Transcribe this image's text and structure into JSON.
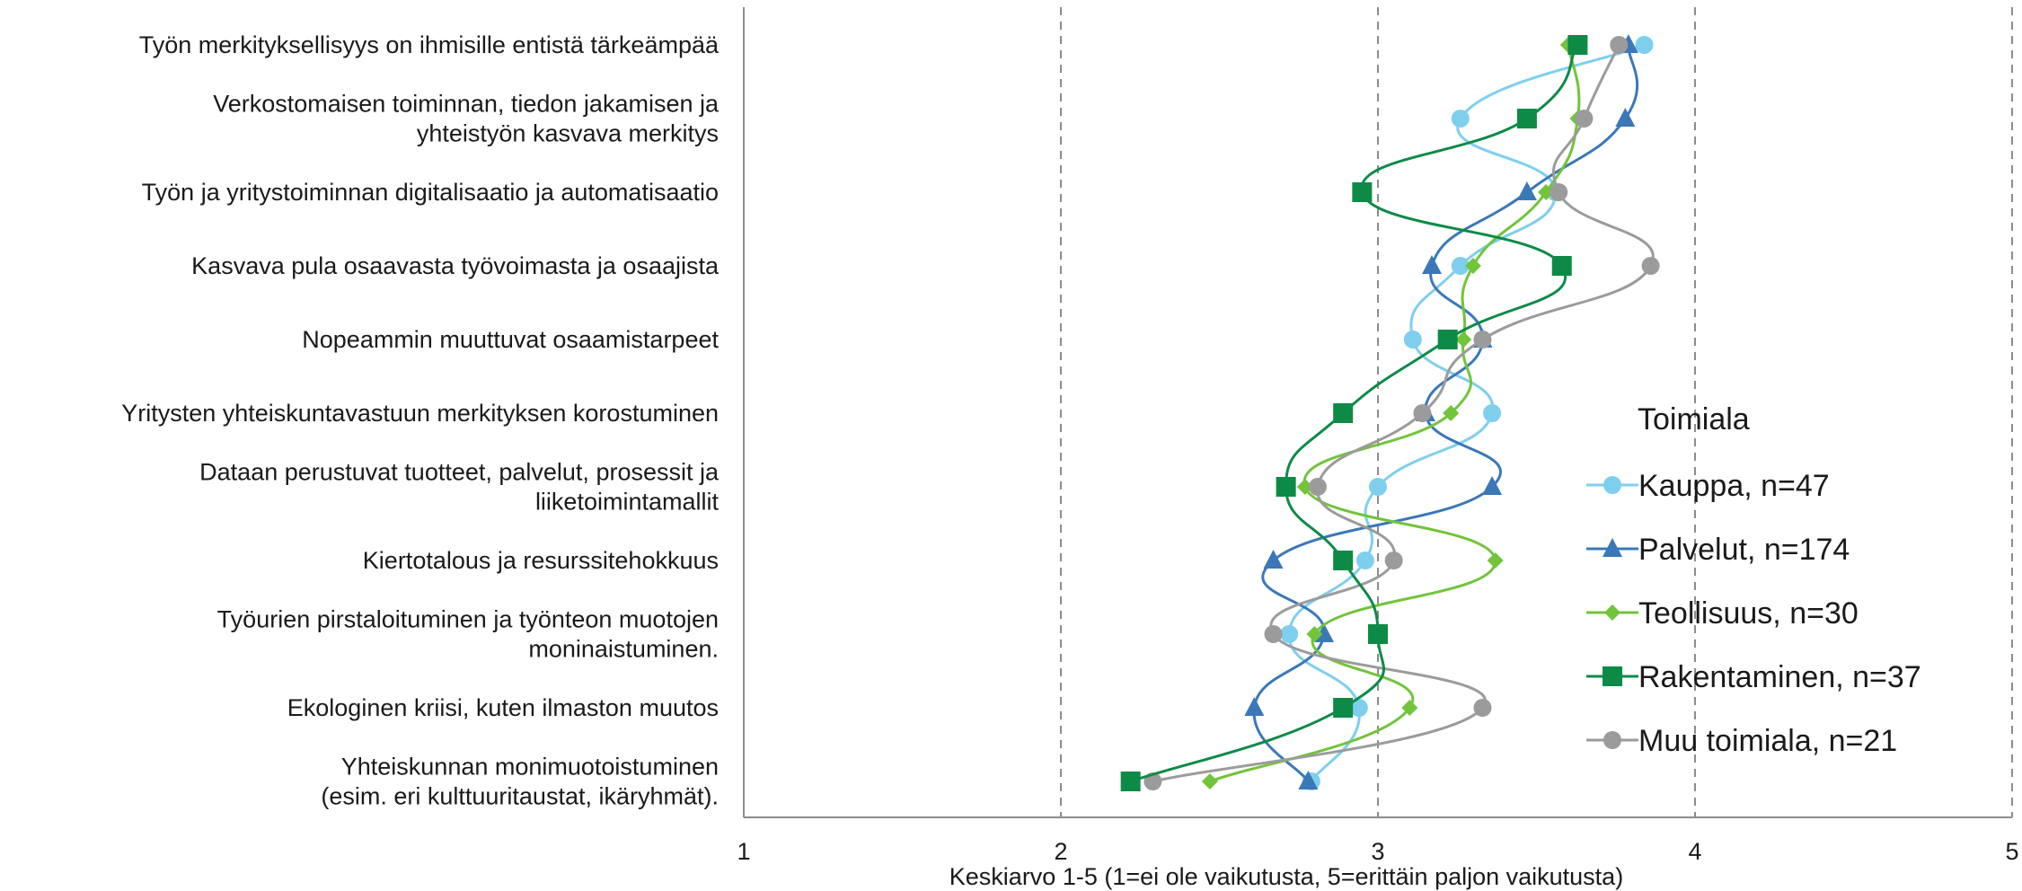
{
  "chart_data": {
    "type": "line",
    "orientation": "horizontal",
    "categories": [
      [
        "Työn merkityksellisyys on ihmisille entistä tärkeämpää"
      ],
      [
        "Verkostomaisen toiminnan, tiedon jakamisen ja",
        "yhteistyön kasvava merkitys"
      ],
      [
        "Työn ja yritystoiminnan digitalisaatio ja automatisaatio"
      ],
      [
        "Kasvava pula osaavasta työvoimasta ja osaajista"
      ],
      [
        "Nopeammin muuttuvat osaamistarpeet"
      ],
      [
        "Yritysten yhteiskuntavastuun merkityksen korostuminen"
      ],
      [
        "Dataan perustuvat tuotteet, palvelut, prosessit ja",
        "liiketoimintamallit"
      ],
      [
        "Kiertotalous ja resurssitehokkuus"
      ],
      [
        "Työurien pirstaloituminen ja työnteon muotojen",
        "moninaistuminen."
      ],
      [
        "Ekologinen kriisi, kuten ilmaston muutos"
      ],
      [
        "Yhteiskunnan monimuotoistuminen",
        "(esim. eri kulttuuritaustat, ikäryhmät)."
      ]
    ],
    "xlabel": "Keskiarvo 1-5 (1=ei ole vaikutusta, 5=erittäin paljon vaikutusta)",
    "xlim": [
      1,
      5
    ],
    "xticks": [
      "1",
      "2",
      "3",
      "4",
      "5"
    ],
    "grid": "vertical dashed",
    "legend_title": "Toimiala",
    "legend_position": "right",
    "series": [
      {
        "name": "Kauppa, n=47",
        "color": "#7ecfee",
        "marker": "circle",
        "values": [
          3.84,
          3.26,
          3.56,
          3.26,
          3.11,
          3.36,
          3.0,
          2.96,
          2.72,
          2.94,
          2.79
        ]
      },
      {
        "name": "Palvelut, n=174",
        "color": "#3a78b8",
        "marker": "triangle",
        "values": [
          3.79,
          3.78,
          3.47,
          3.17,
          3.33,
          3.15,
          3.36,
          2.67,
          2.83,
          2.61,
          2.78
        ]
      },
      {
        "name": "Teollisuus, n=30",
        "color": "#72c43a",
        "marker": "diamond",
        "values": [
          3.6,
          3.63,
          3.53,
          3.3,
          3.27,
          3.23,
          2.77,
          3.37,
          2.8,
          3.1,
          2.47
        ]
      },
      {
        "name": "Rakentaminen, n=37",
        "color": "#0e8a47",
        "marker": "square",
        "values": [
          3.63,
          3.47,
          2.95,
          3.58,
          3.22,
          2.89,
          2.71,
          2.89,
          3.0,
          2.89,
          2.22
        ]
      },
      {
        "name": "Muu toimiala, n=21",
        "color": "#9b9b9b",
        "marker": "circle",
        "values": [
          3.76,
          3.65,
          3.57,
          3.86,
          3.33,
          3.14,
          2.81,
          3.05,
          2.67,
          3.33,
          2.29
        ]
      }
    ]
  }
}
